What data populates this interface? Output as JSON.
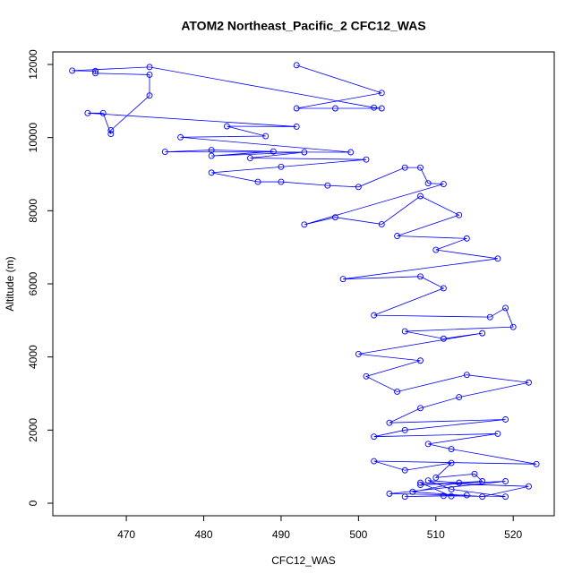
{
  "chart_data": {
    "type": "line",
    "title": "ATOM2 Northeast_Pacific_2 CFC12_WAS",
    "x_label": "CFC12_WAS",
    "y_label": "Altitude (m)",
    "color": "#0000ff",
    "markers": true,
    "x": [
      492,
      503,
      492,
      497,
      503,
      502,
      473,
      463,
      466,
      466,
      473,
      473,
      468,
      468,
      467,
      465,
      492,
      483,
      488,
      477,
      499,
      475,
      481,
      489,
      481,
      493,
      486,
      501,
      490,
      481,
      487,
      490,
      496,
      500,
      506,
      508,
      509,
      511,
      493,
      497,
      503,
      508,
      513,
      505,
      514,
      510,
      518,
      498,
      508,
      511,
      502,
      517,
      519,
      520,
      506,
      511,
      516,
      500,
      508,
      501,
      505,
      514,
      522,
      513,
      508,
      504,
      519,
      506,
      502,
      518,
      509,
      512,
      523,
      502,
      506,
      512,
      510,
      515,
      516,
      508,
      519,
      504,
      514,
      506,
      511,
      519,
      512,
      509,
      513,
      507,
      516,
      522,
      508,
      512
    ],
    "values": [
      11980,
      11220,
      10800,
      10800,
      10800,
      10820,
      11930,
      11830,
      11820,
      11760,
      11720,
      11150,
      10200,
      10100,
      10670,
      10670,
      10300,
      10310,
      10040,
      10010,
      9600,
      9610,
      9660,
      9620,
      9500,
      9600,
      9440,
      9400,
      9200,
      9040,
      8790,
      8790,
      8690,
      8650,
      9180,
      9180,
      8750,
      8730,
      7620,
      7820,
      7630,
      8400,
      7880,
      7310,
      7240,
      6930,
      6690,
      6130,
      6200,
      5880,
      5140,
      5090,
      5340,
      4820,
      4700,
      4500,
      4650,
      4080,
      3900,
      3470,
      3050,
      3510,
      3300,
      2900,
      2600,
      2200,
      2290,
      2000,
      1820,
      1900,
      1620,
      1480,
      1070,
      1150,
      900,
      1100,
      700,
      800,
      600,
      500,
      600,
      260,
      220,
      180,
      200,
      180,
      380,
      620,
      560,
      310,
      180,
      460,
      560,
      190
    ],
    "xlim": [
      460.5,
      525.3
    ],
    "ylim": [
      -343,
      12343
    ],
    "xticks": [
      470,
      480,
      490,
      500,
      510,
      520
    ],
    "yticks": [
      0,
      2000,
      4000,
      6000,
      8000,
      10000,
      12000
    ]
  }
}
